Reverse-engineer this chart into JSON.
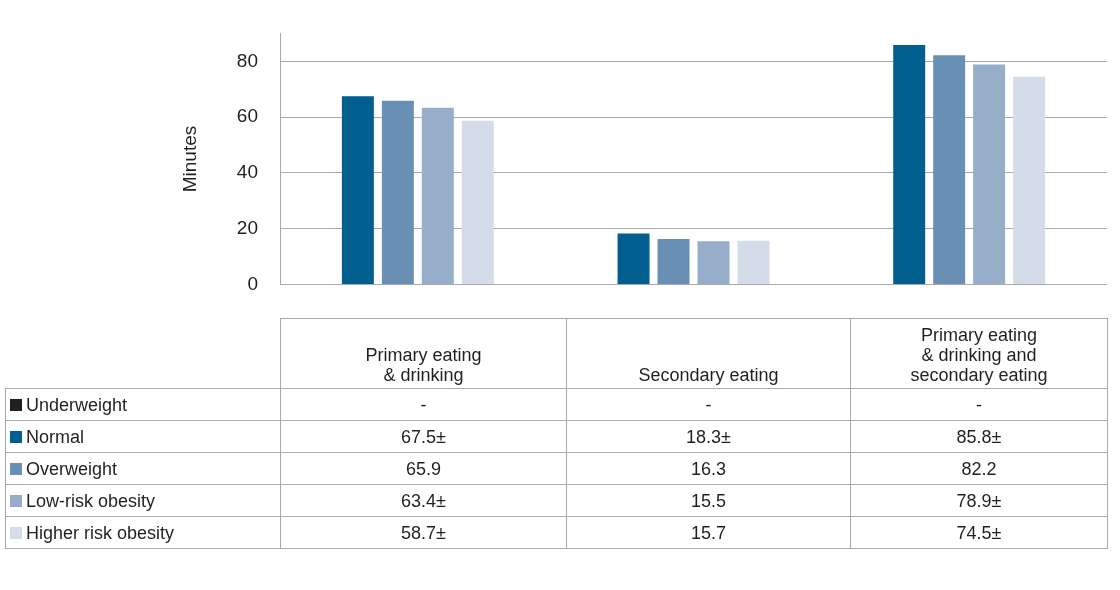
{
  "chart_data": {
    "type": "bar",
    "ylabel": "Minutes",
    "categories": [
      "Primary eating & drinking",
      "Secondary eating",
      "Primary eating & drinking and secondary eating"
    ],
    "series": [
      {
        "name": "Underweight",
        "color": "#231f20",
        "values": [
          null,
          null,
          null
        ],
        "value_labels": [
          "-",
          "-",
          "-"
        ]
      },
      {
        "name": "Normal",
        "color": "#005f8f",
        "values": [
          67.5,
          18.3,
          85.8
        ],
        "value_labels": [
          "67.5±",
          "18.3±",
          "85.8±"
        ]
      },
      {
        "name": "Overweight",
        "color": "#6a8fb5",
        "values": [
          65.9,
          16.3,
          82.2
        ],
        "value_labels": [
          "65.9",
          "16.3",
          "82.2"
        ]
      },
      {
        "name": "Low-risk obesity",
        "color": "#97aecb",
        "values": [
          63.4,
          15.5,
          78.9
        ],
        "value_labels": [
          "63.4±",
          "15.5",
          "78.9±"
        ]
      },
      {
        "name": "Higher risk obesity",
        "color": "#d3dce8",
        "values": [
          58.7,
          15.7,
          74.5
        ],
        "value_labels": [
          "58.7±",
          "15.7",
          "74.5±"
        ]
      }
    ],
    "ylim": [
      0,
      90
    ],
    "yticks": [
      0,
      20,
      40,
      60,
      80
    ],
    "grid": "y",
    "legend": "bottom left"
  }
}
